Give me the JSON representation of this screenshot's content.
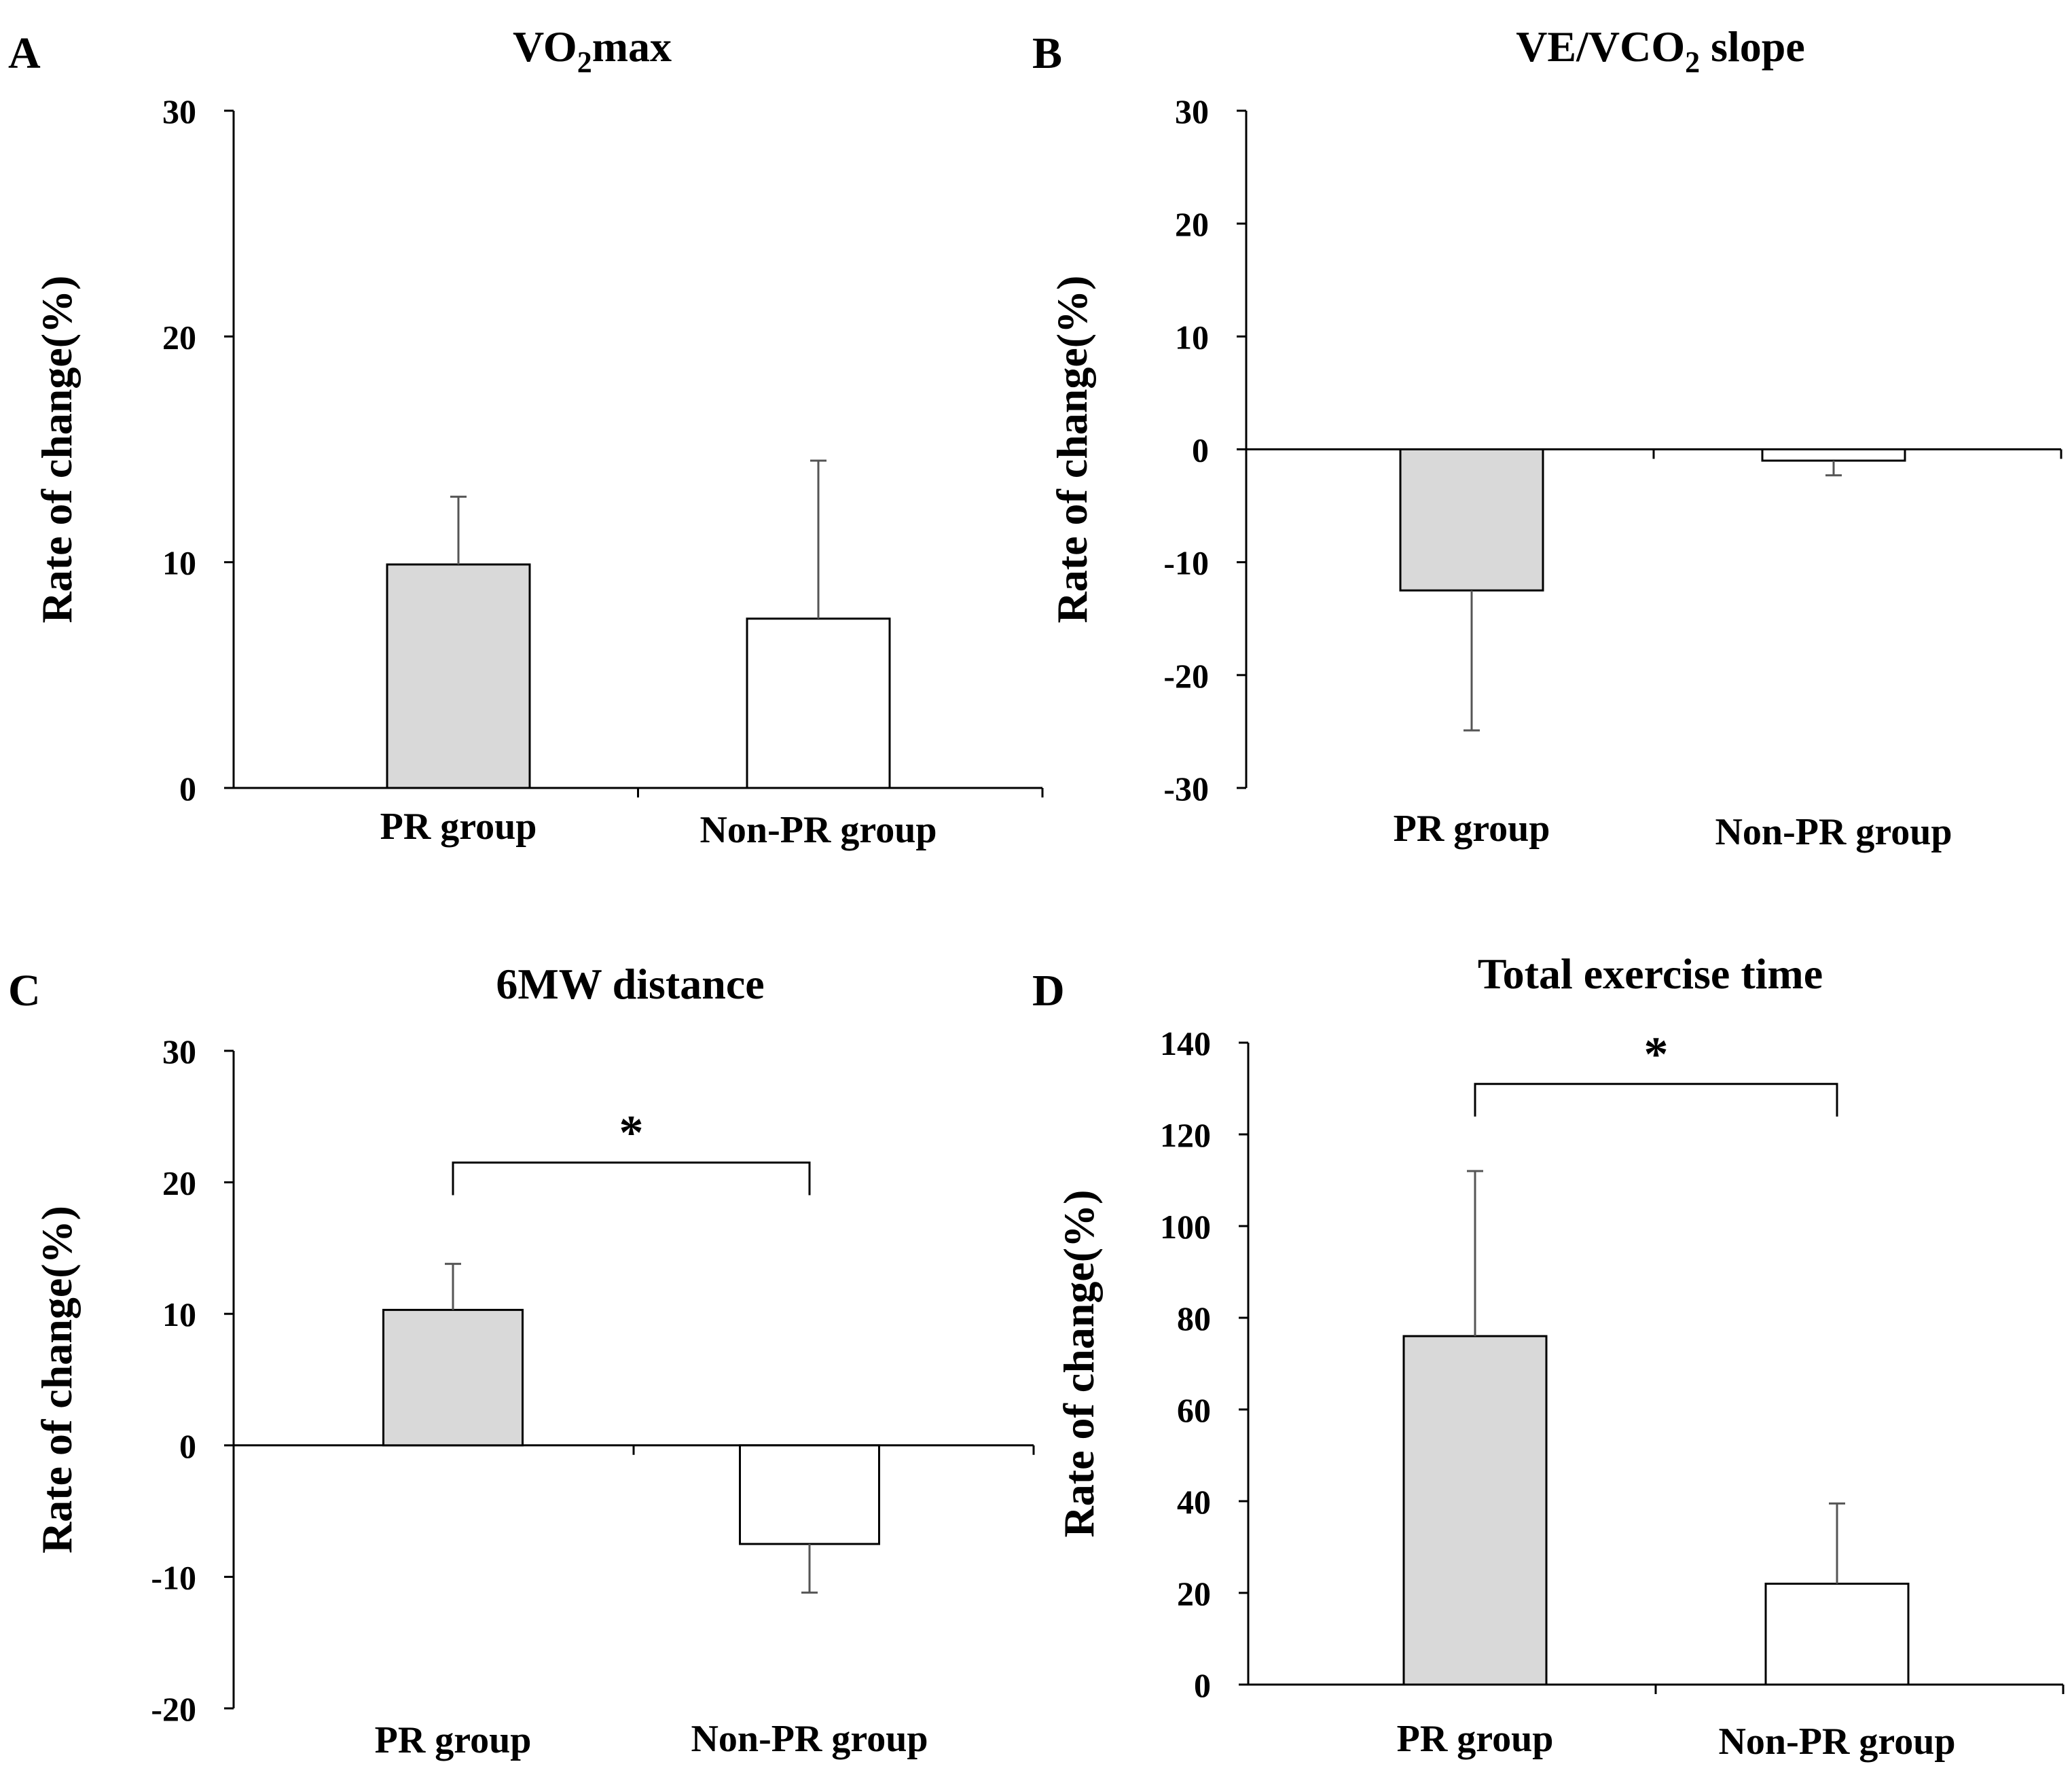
{
  "colors": {
    "pr_fill": "#d9d9d9",
    "nonpr_fill": "#ffffff",
    "axis": "#000000",
    "errorbar": "#555555"
  },
  "chart_data": [
    {
      "panel_letter": "A",
      "type": "bar",
      "title": {
        "main": "VO",
        "sub": "2",
        "tail": "max"
      },
      "ylabel": "Rate of change(%)",
      "ylim": [
        0,
        30
      ],
      "yticks": [
        0,
        10,
        20,
        30
      ],
      "categories": [
        "PR group",
        "Non-PR group"
      ],
      "values": [
        9.9,
        7.5
      ],
      "error_plus": [
        3.0,
        7.0
      ],
      "error_direction": [
        "up",
        "up"
      ],
      "significance": null
    },
    {
      "panel_letter": "B",
      "type": "bar",
      "title": {
        "main": "VE/VCO",
        "sub": "2",
        "tail": " slope"
      },
      "ylabel": "Rate of change(%)",
      "ylim": [
        -30,
        30
      ],
      "yticks": [
        -30,
        -20,
        -10,
        0,
        10,
        20,
        30
      ],
      "categories": [
        "PR group",
        "Non-PR group"
      ],
      "values": [
        -12.5,
        -1.0
      ],
      "error_plus": [
        12.4,
        1.3
      ],
      "error_direction": [
        "down",
        "down"
      ],
      "significance": null
    },
    {
      "panel_letter": "C",
      "type": "bar",
      "title": {
        "main": "6MW distance",
        "sub": "",
        "tail": ""
      },
      "ylabel": "Rate of change(%)",
      "ylim": [
        -20,
        30
      ],
      "yticks": [
        -20,
        -10,
        0,
        10,
        20,
        30
      ],
      "categories": [
        "PR group",
        "Non-PR group"
      ],
      "values": [
        10.3,
        -7.5
      ],
      "error_plus": [
        3.5,
        3.7
      ],
      "error_direction": [
        "up",
        "down"
      ],
      "significance": {
        "label": "*",
        "bracket_y": 21.5
      }
    },
    {
      "panel_letter": "D",
      "type": "bar",
      "title": {
        "main": "Total exercise time",
        "sub": "",
        "tail": ""
      },
      "ylabel": "Rate of change(%)",
      "ylim": [
        0,
        140
      ],
      "yticks": [
        0,
        20,
        40,
        60,
        80,
        100,
        120,
        140
      ],
      "categories": [
        "PR group",
        "Non-PR group"
      ],
      "values": [
        76.0,
        22.0
      ],
      "error_plus": [
        36.0,
        17.5
      ],
      "error_direction": [
        "up",
        "up"
      ],
      "significance": {
        "label": "*",
        "bracket_y": 131
      }
    }
  ]
}
